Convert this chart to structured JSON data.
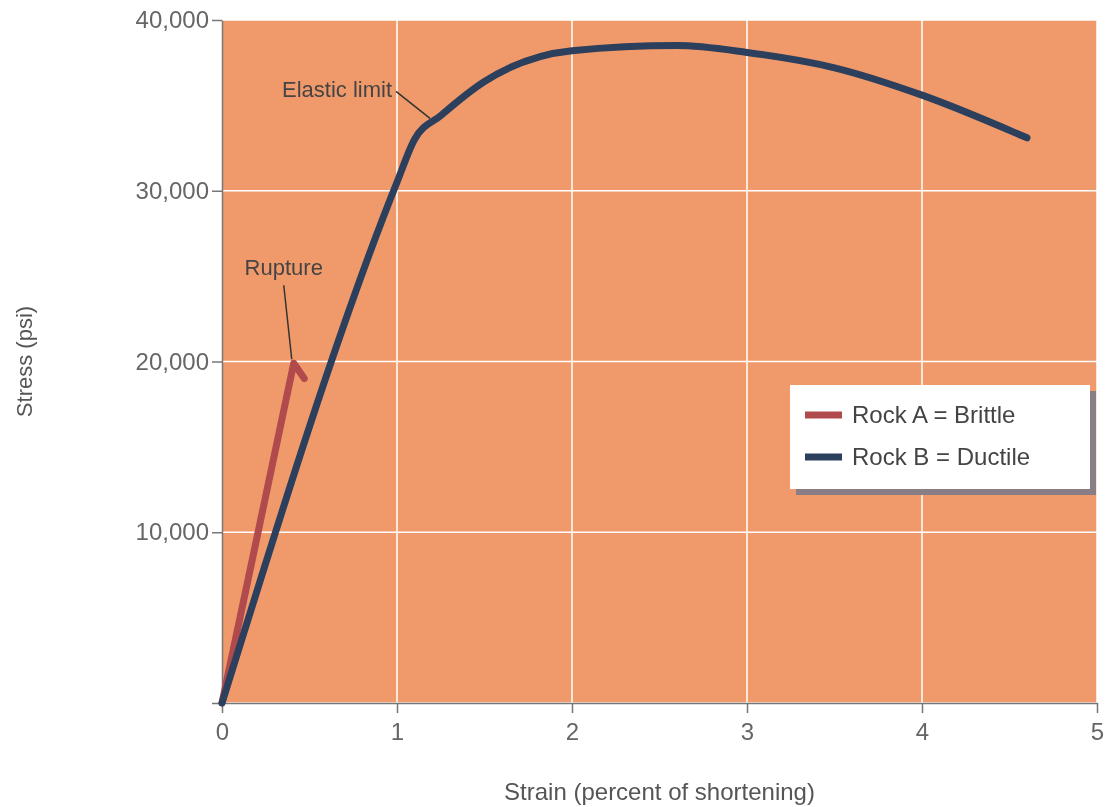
{
  "chart_data": {
    "type": "line",
    "xlabel": "Strain (percent of shortening)",
    "ylabel": "Stress (psi)",
    "xlim": [
      0,
      5
    ],
    "ylim": [
      0,
      40000
    ],
    "xticks": [
      0,
      1,
      2,
      3,
      4,
      5
    ],
    "yticks": [
      {
        "value": 0,
        "label": null
      },
      {
        "value": 10000,
        "label": "10,000"
      },
      {
        "value": 20000,
        "label": "20,000"
      },
      {
        "value": 30000,
        "label": "30,000"
      },
      {
        "value": 40000,
        "label": "40,000"
      }
    ],
    "grid": true,
    "legend": "right",
    "line_style": "solid",
    "marker": "none",
    "series": [
      {
        "name": "Rock A = Brittle",
        "color": "#b04a4c",
        "x": [
          0,
          0.41,
          0.47
        ],
        "values": [
          0,
          19900,
          19000
        ]
      },
      {
        "name": "Rock B = Ductile",
        "color": "#2c3f5c",
        "x": [
          0,
          1,
          1.1,
          1.25,
          1.5,
          2,
          2.6,
          3,
          3.5,
          4,
          4.6
        ],
        "values": [
          0,
          30500,
          33000,
          34400,
          36400,
          38200,
          38500,
          38100,
          37200,
          35600,
          33100
        ]
      }
    ],
    "annotations": [
      {
        "text": "Elastic limit",
        "x": 1.2,
        "y": 34000
      },
      {
        "text": "Rupture",
        "x": 0.41,
        "y": 19900
      }
    ]
  }
}
